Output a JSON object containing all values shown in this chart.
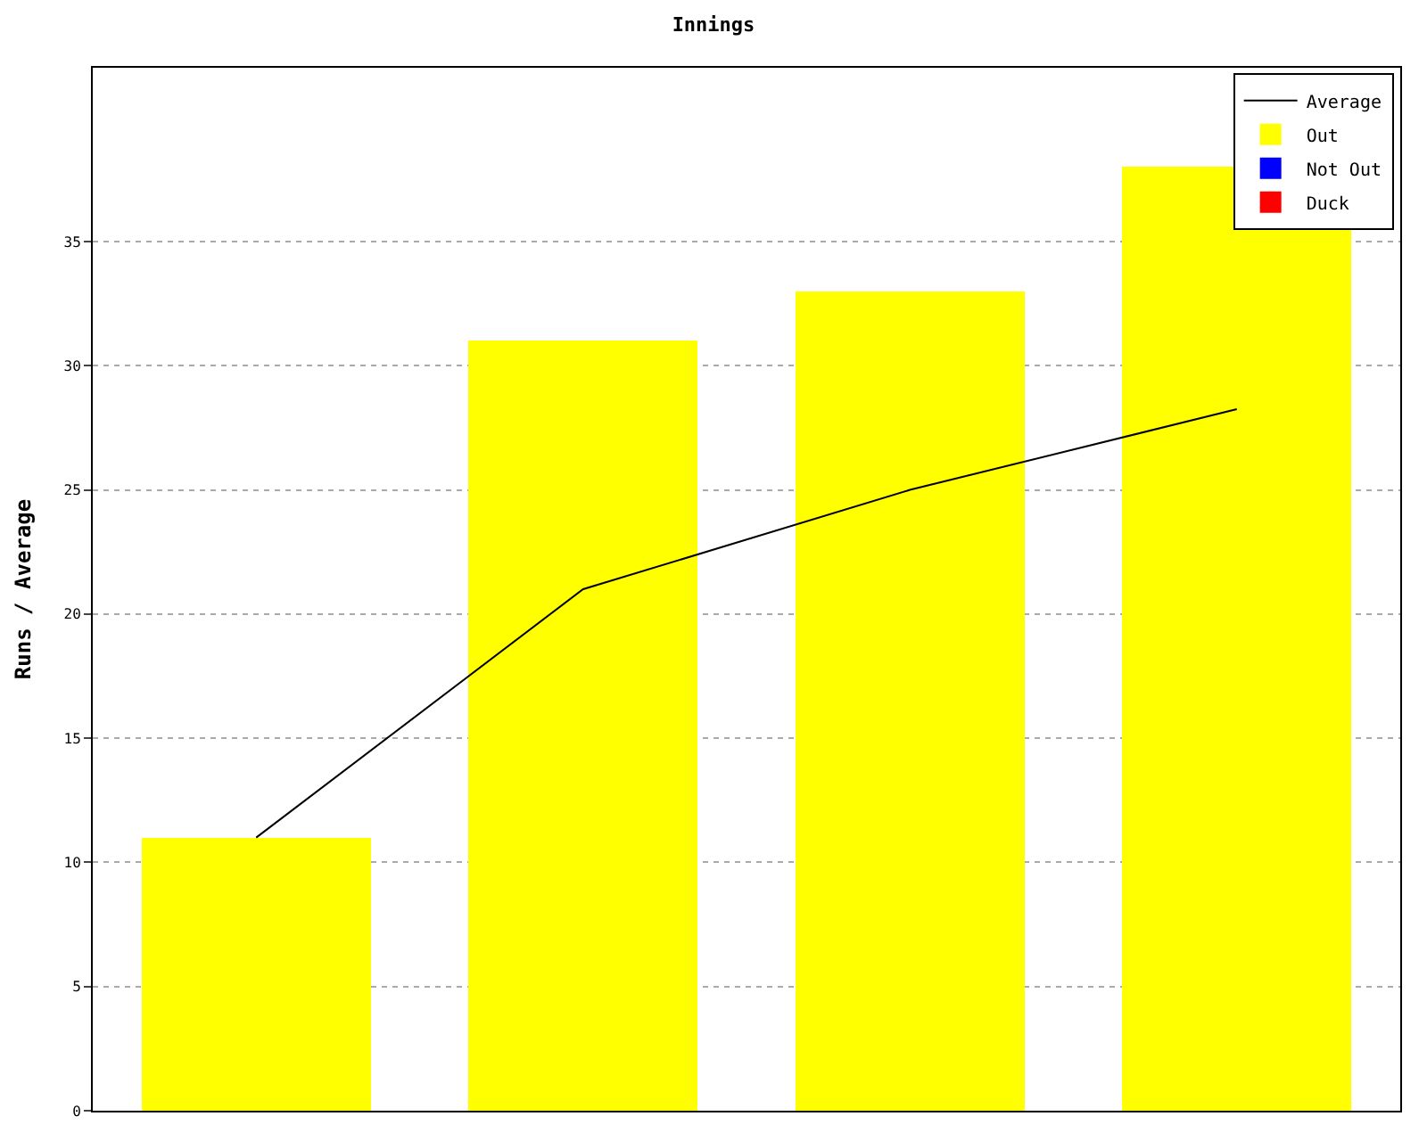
{
  "chart_data": {
    "type": "bar",
    "title": "Innings",
    "ylabel": "Runs / Average",
    "categories": [
      null,
      null,
      null,
      null
    ],
    "series": [
      {
        "name": "Average",
        "type": "line",
        "color": "#000000",
        "values": [
          11,
          21,
          25,
          28.25
        ]
      },
      {
        "name": "Out",
        "color": "#ffff00",
        "values": [
          11,
          31,
          33,
          38
        ]
      },
      {
        "name": "Not Out",
        "color": "#0000ff",
        "values": [
          null,
          null,
          null,
          null
        ]
      },
      {
        "name": "Duck",
        "color": "#ff0000",
        "values": [
          null,
          null,
          null,
          null
        ]
      }
    ],
    "ylim": [
      0,
      42
    ],
    "yticks": [
      0,
      5,
      10,
      15,
      20,
      25,
      30,
      35
    ],
    "grid": "y",
    "legend": "top right",
    "marker": "none",
    "line_style": "solid",
    "stacked": true
  }
}
